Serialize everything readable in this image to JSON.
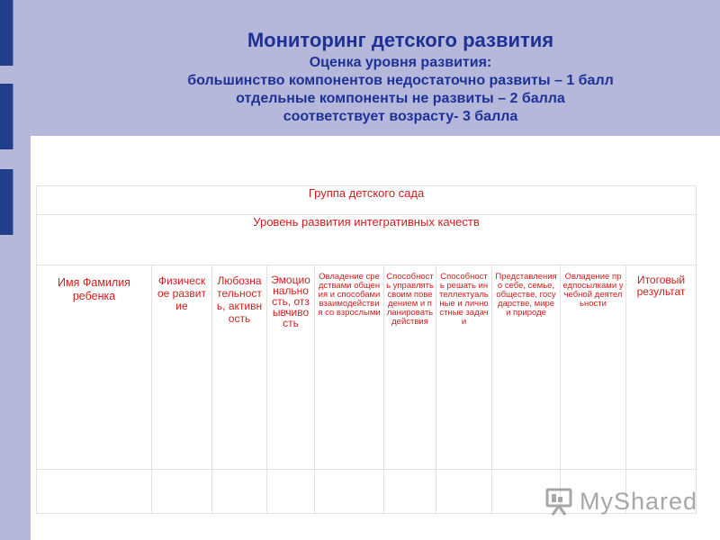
{
  "title": {
    "main": "Мониторинг детского развития",
    "line1": "Оценка уровня развития:",
    "line2": "большинство компонентов недостаточно развиты – 1 балл",
    "line3": "отдельные компоненты не развиты – 2 балла",
    "line4": "соответствует возрасту- 3 балла"
  },
  "table": {
    "group_label": "Группа детского сада",
    "level_label": "Уровень развития интегративных качеств",
    "columns": [
      "Имя Фамилия ребенка",
      "Физическое развитие",
      "Любознательность, активность",
      "Эмоциональность, отзывчивость",
      "Овладение средствами общения и способами взаимодействия со взрослыми",
      "Способность управлять своим поведением и планировать действия",
      "Способность решать интеллектуальные и личностные задачи",
      "Представления о себе, семье, обществе, государстве, мире и природе",
      "Овладение предпосылками учебной деятельности",
      "Итоговый результат"
    ]
  },
  "watermark": {
    "text": "MyShared",
    "icon": "presentation-board-icon"
  },
  "colors": {
    "background": "#b5b8db",
    "title": "#1e3296",
    "table_text": "#cc1e1e",
    "sidebar": "#1f3f8a"
  }
}
